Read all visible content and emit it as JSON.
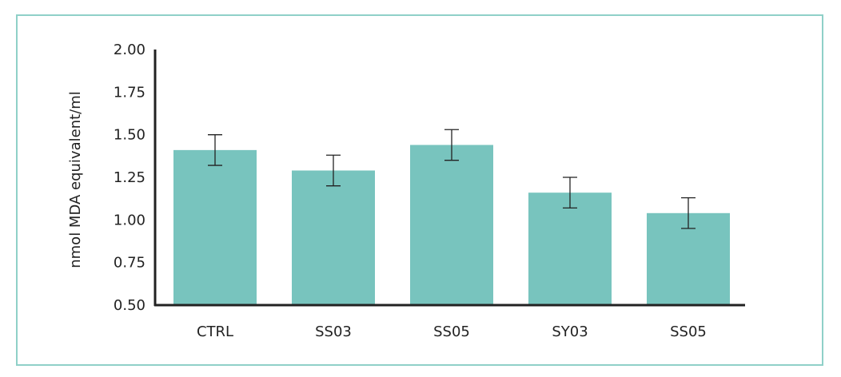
{
  "colors": {
    "bar": "#78c4be",
    "axis": "#222222",
    "frame": "#8fd0c8",
    "error": "#222222"
  },
  "chart_data": {
    "type": "bar",
    "title": "",
    "xlabel": "",
    "ylabel": "nmol MDA equivalent/ml",
    "categories": [
      "CTRL",
      "SS03",
      "SS05",
      "SY03",
      "SS05"
    ],
    "values": [
      1.41,
      1.29,
      1.44,
      1.16,
      1.04
    ],
    "errors": [
      0.09,
      0.09,
      0.09,
      0.09,
      0.09
    ],
    "ylim": [
      0.5,
      2.0
    ],
    "yticks": [
      "0.50",
      "0.75",
      "1.00",
      "1.25",
      "1.50",
      "1.75",
      "2.00"
    ],
    "grid": false,
    "legend": "none"
  }
}
